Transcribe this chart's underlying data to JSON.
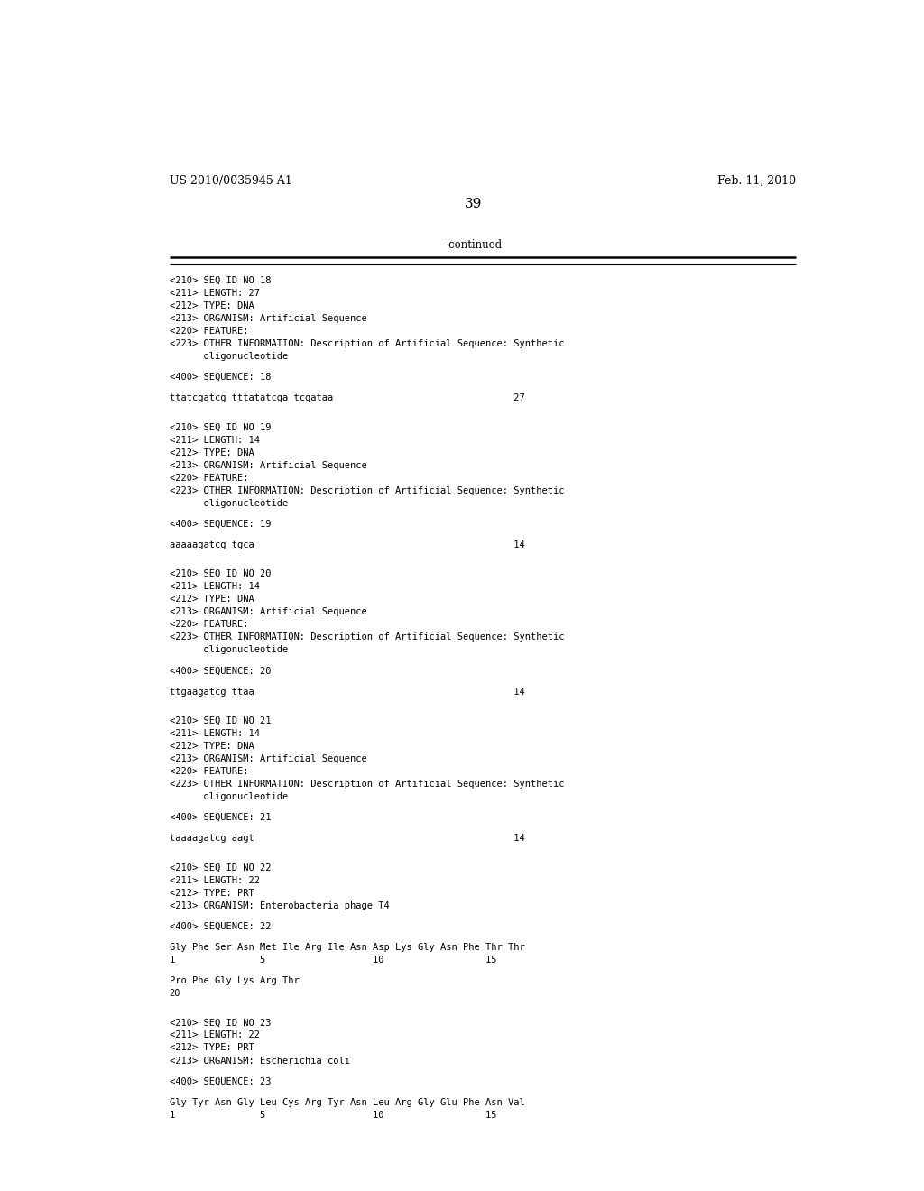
{
  "background_color": "#ffffff",
  "header_left": "US 2010/0035945 A1",
  "header_right": "Feb. 11, 2010",
  "page_number": "39",
  "continued_label": "-continued",
  "lines": [
    "<210> SEQ ID NO 18",
    "<211> LENGTH: 27",
    "<212> TYPE: DNA",
    "<213> ORGANISM: Artificial Sequence",
    "<220> FEATURE:",
    "<223> OTHER INFORMATION: Description of Artificial Sequence: Synthetic",
    "      oligonucleotide",
    "",
    "<400> SEQUENCE: 18",
    "",
    "ttatcgatcg tttatatcga tcgataa                                27",
    "",
    "",
    "<210> SEQ ID NO 19",
    "<211> LENGTH: 14",
    "<212> TYPE: DNA",
    "<213> ORGANISM: Artificial Sequence",
    "<220> FEATURE:",
    "<223> OTHER INFORMATION: Description of Artificial Sequence: Synthetic",
    "      oligonucleotide",
    "",
    "<400> SEQUENCE: 19",
    "",
    "aaaaagatcg tgca                                              14",
    "",
    "",
    "<210> SEQ ID NO 20",
    "<211> LENGTH: 14",
    "<212> TYPE: DNA",
    "<213> ORGANISM: Artificial Sequence",
    "<220> FEATURE:",
    "<223> OTHER INFORMATION: Description of Artificial Sequence: Synthetic",
    "      oligonucleotide",
    "",
    "<400> SEQUENCE: 20",
    "",
    "ttgaagatcg ttaa                                              14",
    "",
    "",
    "<210> SEQ ID NO 21",
    "<211> LENGTH: 14",
    "<212> TYPE: DNA",
    "<213> ORGANISM: Artificial Sequence",
    "<220> FEATURE:",
    "<223> OTHER INFORMATION: Description of Artificial Sequence: Synthetic",
    "      oligonucleotide",
    "",
    "<400> SEQUENCE: 21",
    "",
    "taaaagatcg aagt                                              14",
    "",
    "",
    "<210> SEQ ID NO 22",
    "<211> LENGTH: 22",
    "<212> TYPE: PRT",
    "<213> ORGANISM: Enterobacteria phage T4",
    "",
    "<400> SEQUENCE: 22",
    "",
    "Gly Phe Ser Asn Met Ile Arg Ile Asn Asp Lys Gly Asn Phe Thr Thr",
    "1               5                   10                  15",
    "",
    "Pro Phe Gly Lys Arg Thr",
    "20",
    "",
    "",
    "<210> SEQ ID NO 23",
    "<211> LENGTH: 22",
    "<212> TYPE: PRT",
    "<213> ORGANISM: Escherichia coli",
    "",
    "<400> SEQUENCE: 23",
    "",
    "Gly Tyr Asn Gly Leu Cys Arg Tyr Asn Leu Arg Gly Glu Phe Asn Val",
    "1               5                   10                  15"
  ]
}
